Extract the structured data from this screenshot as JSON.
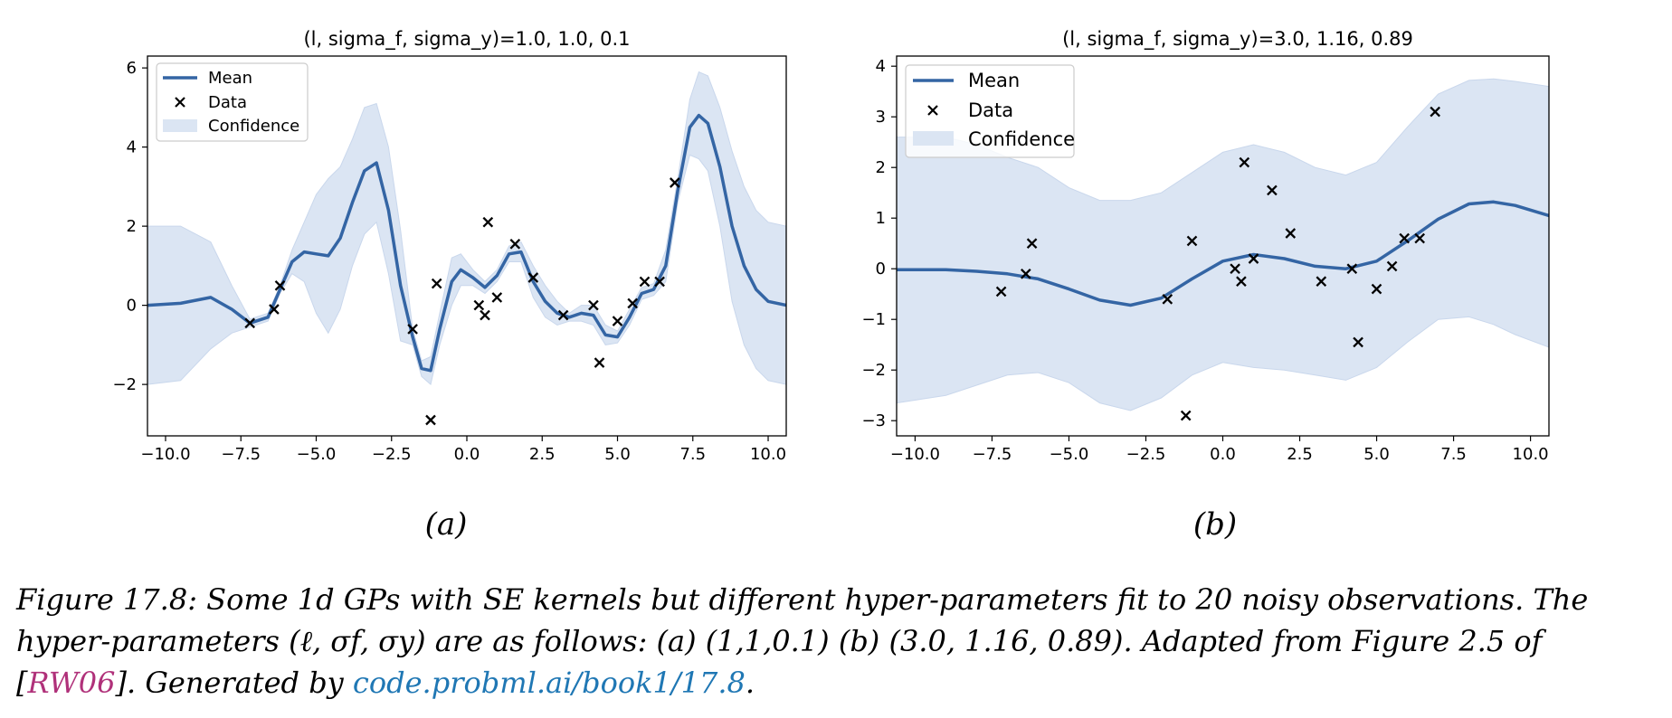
{
  "colors": {
    "mean": "#3465a4",
    "confidence": "#dbe5f3",
    "data": "#000000",
    "cite": "#b0317a",
    "link": "#1f77b4"
  },
  "legend": {
    "mean": "Mean",
    "data": "Data",
    "confidence": "Confidence"
  },
  "subplot_labels": [
    "(a)",
    "(b)"
  ],
  "caption": {
    "line1": "Figure 17.8: Some 1d GPs with SE kernels but different hyper-parameters fit to 20 noisy observations. The",
    "line2": "hyper-parameters (ℓ, σf, σy) are as follows: (a) (1,1,0.1) (b) (3.0, 1.16, 0.89). Adapted from Figure 2.5 of",
    "line3_pre": "[",
    "cite": "RW06",
    "line3_mid": "]. Generated by ",
    "link": "code.probml.ai/book1/17.8",
    "line3_post": "."
  },
  "chart_data": [
    {
      "type": "line",
      "title": "(l, sigma_f, sigma_y)=1.0, 1.0, 0.1",
      "xlim": [
        -10.6,
        10.6
      ],
      "ylim": [
        -3.3,
        6.3
      ],
      "xticks": [
        -10.0,
        -7.5,
        -5.0,
        -2.5,
        0.0,
        2.5,
        5.0,
        7.5,
        10.0
      ],
      "xtick_labels": [
        "−10.0",
        "−7.5",
        "−5.0",
        "−2.5",
        "0.0",
        "2.5",
        "5.0",
        "7.5",
        "10.0"
      ],
      "yticks": [
        -2,
        0,
        2,
        4,
        6
      ],
      "ytick_labels": [
        "−2",
        "0",
        "2",
        "4",
        "6"
      ],
      "legend_position": "upper-left",
      "data": {
        "x": [
          -7.2,
          -6.4,
          -6.2,
          -1.8,
          -1.2,
          -1.0,
          0.4,
          0.6,
          0.7,
          1.0,
          1.6,
          2.2,
          3.2,
          4.2,
          4.4,
          5.0,
          5.5,
          5.9,
          6.4,
          6.9
        ],
        "y": [
          -0.45,
          -0.1,
          0.5,
          -0.6,
          -2.9,
          0.55,
          0.0,
          -0.25,
          2.1,
          0.2,
          1.55,
          0.7,
          -0.25,
          0.0,
          -1.45,
          -0.4,
          0.05,
          0.6,
          0.6,
          3.1
        ]
      },
      "mean": {
        "x": [
          -10.6,
          -9.5,
          -8.5,
          -7.8,
          -7.2,
          -6.6,
          -6.2,
          -5.8,
          -5.4,
          -5.0,
          -4.6,
          -4.2,
          -3.8,
          -3.4,
          -3.0,
          -2.6,
          -2.2,
          -1.8,
          -1.5,
          -1.2,
          -0.9,
          -0.5,
          -0.2,
          0.2,
          0.6,
          1.0,
          1.4,
          1.8,
          2.2,
          2.6,
          3.0,
          3.4,
          3.8,
          4.2,
          4.6,
          5.0,
          5.4,
          5.8,
          6.2,
          6.6,
          7.0,
          7.4,
          7.7,
          8.0,
          8.4,
          8.8,
          9.2,
          9.6,
          10.0,
          10.6
        ],
        "y": [
          0.0,
          0.05,
          0.2,
          -0.1,
          -0.45,
          -0.3,
          0.4,
          1.1,
          1.35,
          1.3,
          1.25,
          1.7,
          2.6,
          3.4,
          3.6,
          2.4,
          0.5,
          -0.8,
          -1.6,
          -1.65,
          -0.6,
          0.6,
          0.9,
          0.7,
          0.45,
          0.75,
          1.3,
          1.35,
          0.6,
          0.1,
          -0.2,
          -0.3,
          -0.2,
          -0.25,
          -0.75,
          -0.8,
          -0.3,
          0.3,
          0.4,
          1.0,
          2.9,
          4.5,
          4.8,
          4.6,
          3.5,
          2.0,
          1.0,
          0.4,
          0.1,
          0.0
        ]
      },
      "confidence": {
        "upper": [
          2.0,
          2.0,
          1.6,
          0.5,
          -0.35,
          -0.2,
          0.5,
          1.4,
          2.1,
          2.8,
          3.2,
          3.5,
          4.2,
          5.0,
          5.1,
          4.0,
          1.9,
          -0.6,
          -1.4,
          -1.3,
          -0.2,
          1.2,
          1.3,
          0.9,
          0.6,
          0.9,
          1.5,
          1.6,
          1.0,
          0.5,
          0.1,
          -0.2,
          0.0,
          0.0,
          -0.5,
          -0.65,
          -0.1,
          0.45,
          0.55,
          1.4,
          3.2,
          5.2,
          5.9,
          5.8,
          5.0,
          3.9,
          3.0,
          2.4,
          2.1,
          2.0
        ],
        "lower": [
          -2.0,
          -1.9,
          -1.1,
          -0.7,
          -0.55,
          -0.4,
          0.3,
          0.8,
          0.6,
          -0.2,
          -0.7,
          -0.1,
          1.0,
          1.8,
          2.1,
          0.8,
          -0.9,
          -1.0,
          -1.8,
          -2.0,
          -1.0,
          0.0,
          0.5,
          0.5,
          0.3,
          0.6,
          1.1,
          1.1,
          0.2,
          -0.3,
          -0.5,
          -0.4,
          -0.4,
          -0.5,
          -1.0,
          -0.95,
          -0.5,
          0.15,
          0.25,
          0.6,
          2.6,
          3.8,
          3.7,
          3.4,
          2.0,
          0.1,
          -1.0,
          -1.6,
          -1.9,
          -2.0
        ]
      }
    },
    {
      "type": "line",
      "title": "(l, sigma_f, sigma_y)=3.0, 1.16, 0.89",
      "xlim": [
        -10.6,
        10.6
      ],
      "ylim": [
        -3.3,
        4.2
      ],
      "xticks": [
        -10.0,
        -7.5,
        -5.0,
        -2.5,
        0.0,
        2.5,
        5.0,
        7.5,
        10.0
      ],
      "xtick_labels": [
        "−10.0",
        "−7.5",
        "−5.0",
        "−2.5",
        "0.0",
        "2.5",
        "5.0",
        "7.5",
        "10.0"
      ],
      "yticks": [
        -3,
        -2,
        -1,
        0,
        1,
        2,
        3,
        4
      ],
      "ytick_labels": [
        "−3",
        "−2",
        "−1",
        "0",
        "1",
        "2",
        "3",
        "4"
      ],
      "legend_position": "upper-left",
      "data": {
        "x": [
          -7.2,
          -6.4,
          -6.2,
          -1.8,
          -1.2,
          -1.0,
          0.4,
          0.6,
          0.7,
          1.0,
          1.6,
          2.2,
          3.2,
          4.2,
          4.4,
          5.0,
          5.5,
          5.9,
          6.4,
          6.9
        ],
        "y": [
          -0.45,
          -0.1,
          0.5,
          -0.6,
          -2.9,
          0.55,
          0.0,
          -0.25,
          2.1,
          0.2,
          1.55,
          0.7,
          -0.25,
          0.0,
          -1.45,
          -0.4,
          0.05,
          0.6,
          0.6,
          3.1
        ]
      },
      "mean": {
        "x": [
          -10.6,
          -9.0,
          -8.0,
          -7.0,
          -6.0,
          -5.0,
          -4.0,
          -3.0,
          -2.0,
          -1.0,
          0.0,
          1.0,
          2.0,
          3.0,
          4.0,
          5.0,
          6.0,
          7.0,
          8.0,
          8.8,
          9.5,
          10.6
        ],
        "y": [
          -0.02,
          -0.02,
          -0.05,
          -0.1,
          -0.2,
          -0.4,
          -0.62,
          -0.72,
          -0.58,
          -0.2,
          0.15,
          0.28,
          0.2,
          0.05,
          0.0,
          0.15,
          0.55,
          0.98,
          1.28,
          1.32,
          1.25,
          1.05
        ]
      },
      "confidence": {
        "upper": [
          2.6,
          2.6,
          2.45,
          2.2,
          2.0,
          1.6,
          1.35,
          1.35,
          1.5,
          1.9,
          2.3,
          2.45,
          2.3,
          2.0,
          1.85,
          2.1,
          2.8,
          3.45,
          3.72,
          3.75,
          3.7,
          3.6
        ],
        "lower": [
          -2.65,
          -2.5,
          -2.3,
          -2.1,
          -2.05,
          -2.25,
          -2.65,
          -2.8,
          -2.55,
          -2.1,
          -1.85,
          -1.95,
          -2.0,
          -2.1,
          -2.2,
          -1.95,
          -1.45,
          -1.0,
          -0.95,
          -1.1,
          -1.3,
          -1.55
        ]
      }
    }
  ]
}
